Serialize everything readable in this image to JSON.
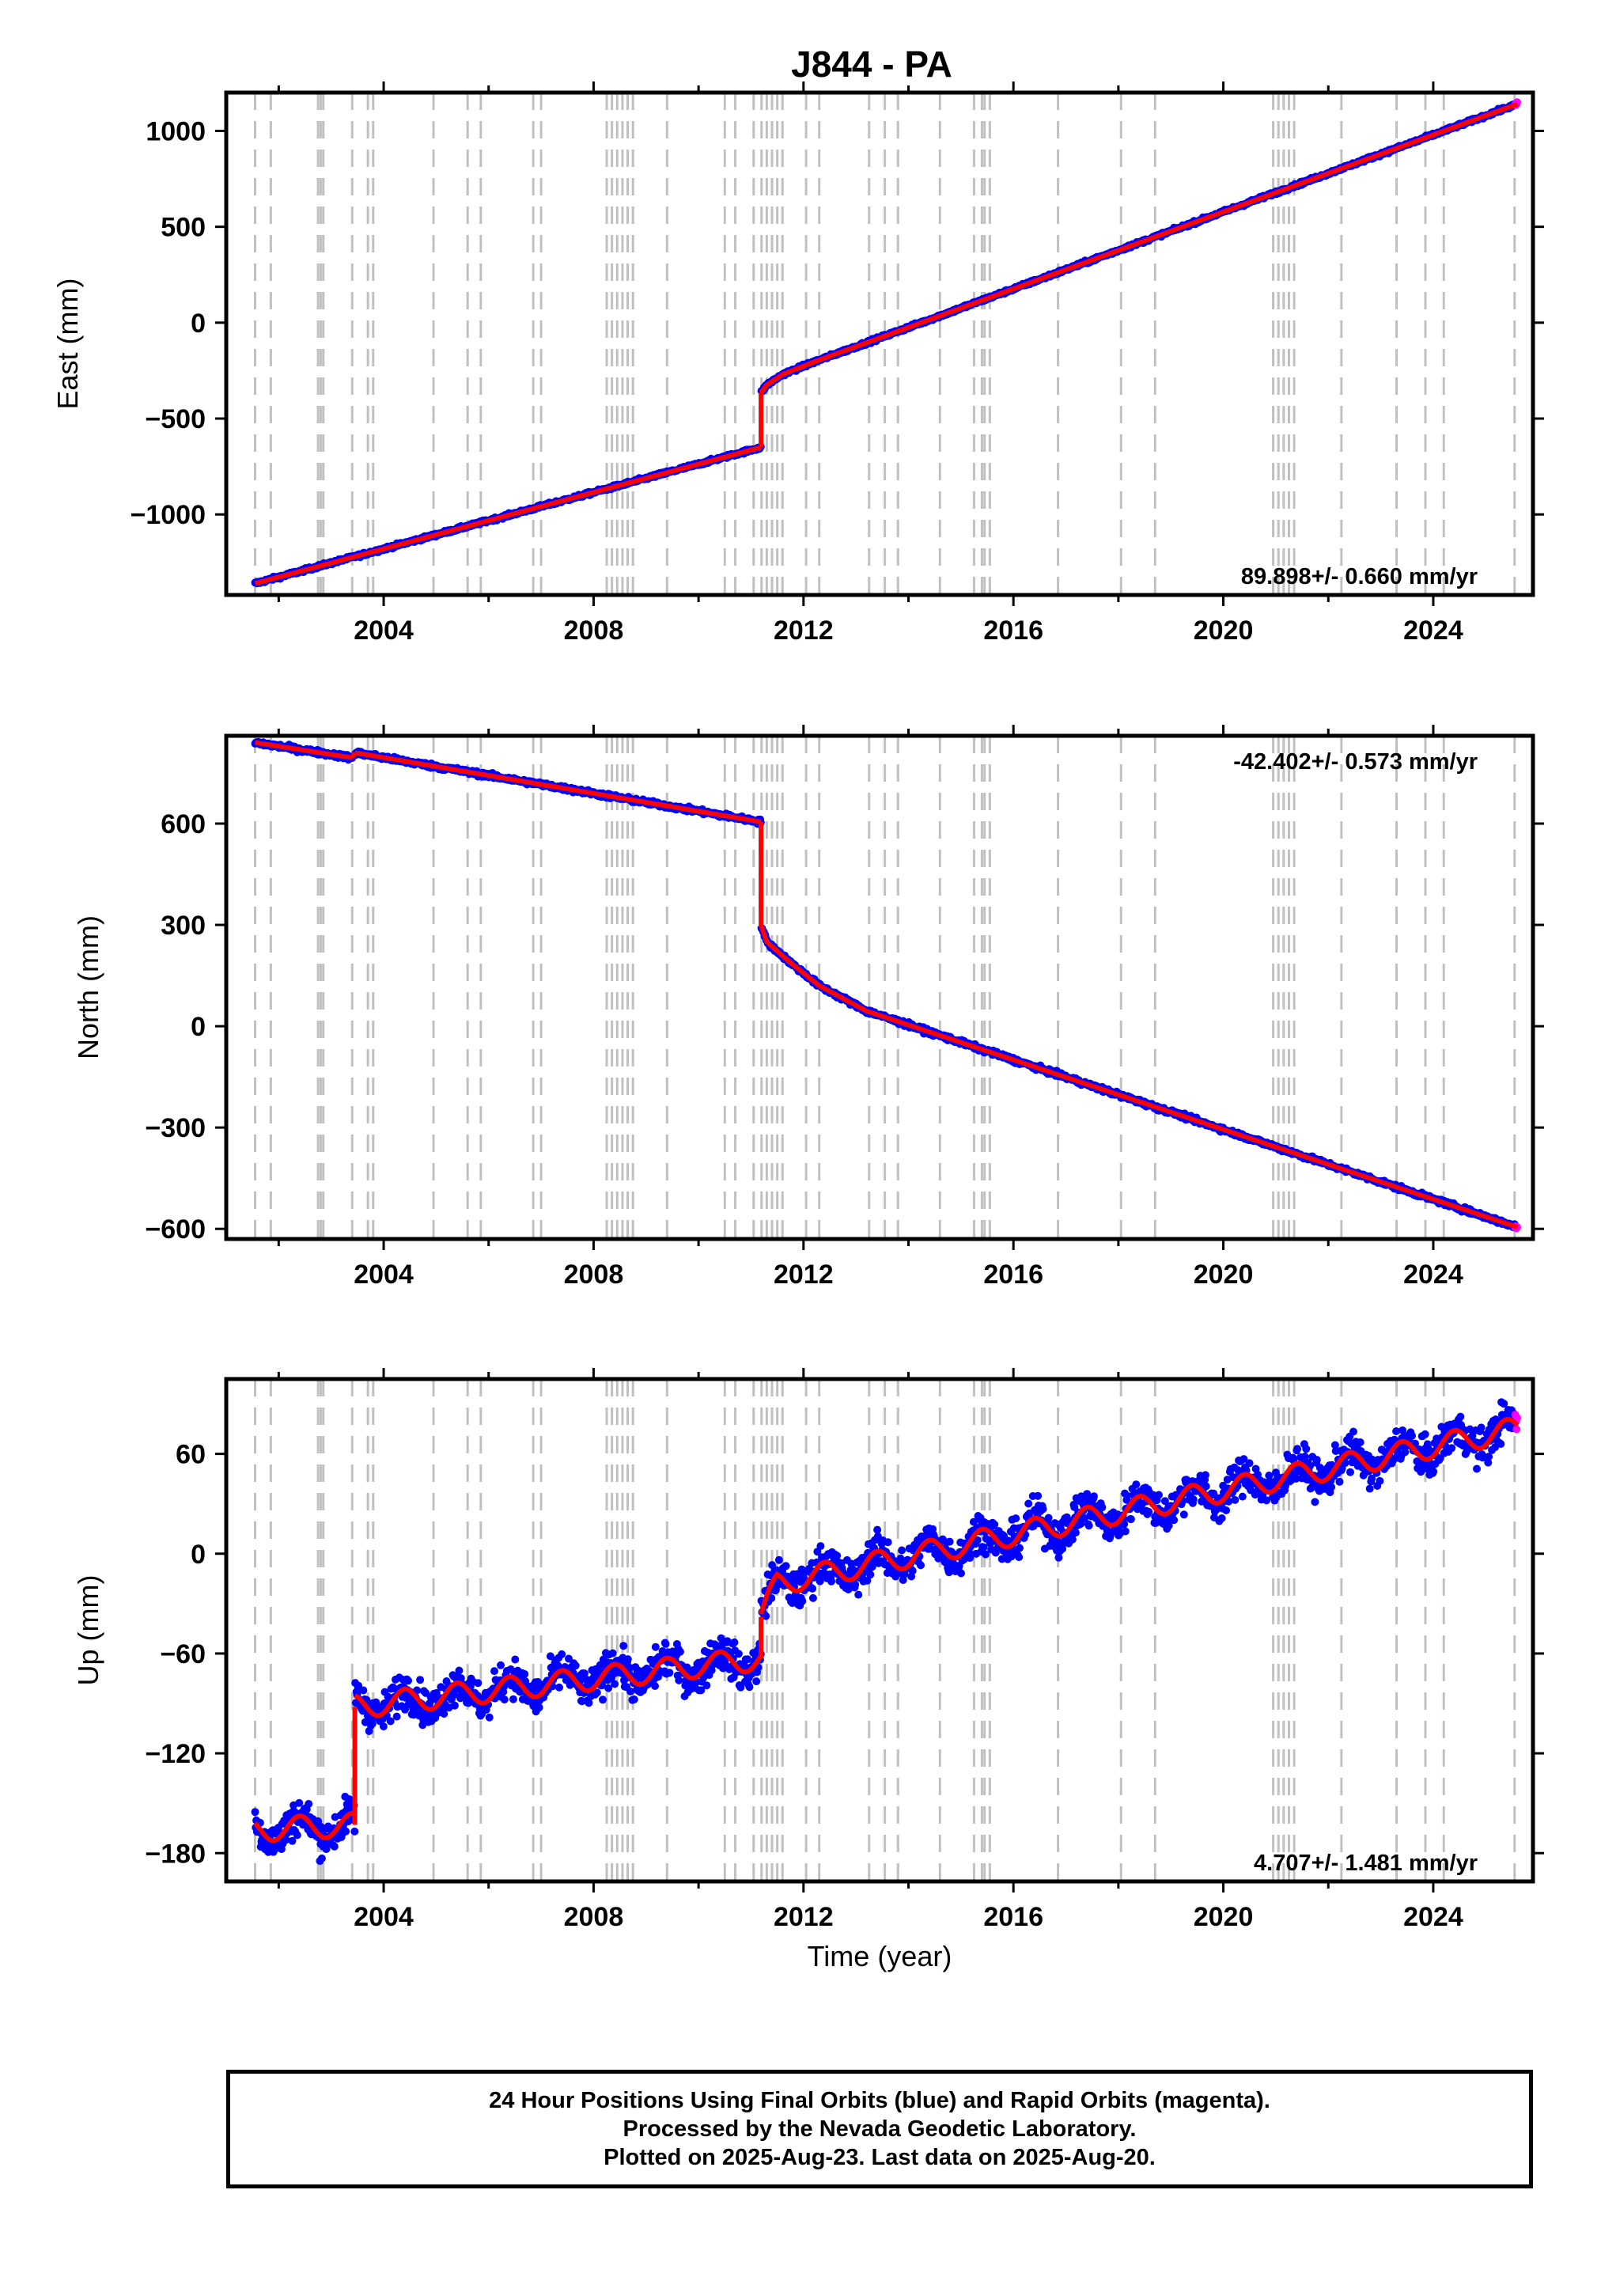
{
  "chart_data": {
    "title": "J844 - PA",
    "type": "scatter",
    "x_label": "Time (year)",
    "x_ticks": [
      2004,
      2008,
      2012,
      2016,
      2020,
      2024
    ],
    "xlim": [
      2001.0,
      2025.9
    ],
    "equipment_change_epochs": [
      2001.55,
      2001.85,
      2002.75,
      2002.8,
      2002.85,
      2003.4,
      2003.7,
      2003.8,
      2004.95,
      2005.6,
      2005.85,
      2006.85,
      2007.0,
      2008.25,
      2008.35,
      2008.45,
      2008.55,
      2008.65,
      2008.75,
      2009.4,
      2010.5,
      2010.7,
      2011.05,
      2011.2,
      2011.3,
      2011.4,
      2011.5,
      2011.6,
      2012.05,
      2012.3,
      2013.25,
      2013.55,
      2013.8,
      2014.6,
      2015.25,
      2015.4,
      2015.45,
      2015.55,
      2016.85,
      2018.05,
      2018.7,
      2020.95,
      2021.05,
      2021.15,
      2021.25,
      2021.35,
      2022.25,
      2023.3,
      2023.85,
      2024.2,
      2025.55
    ],
    "panels": [
      {
        "ylabel": "East (mm)",
        "ylim": [
          -1420,
          1200
        ],
        "y_ticks": [
          -1000,
          -500,
          0,
          500,
          1000
        ],
        "y_tick_labels": [
          "−1000",
          "−500",
          "0",
          "500",
          "1000"
        ],
        "rate": "89.898+/- 0.660 mm/yr",
        "rate_position": "bottom-right",
        "trend_segments": [
          {
            "x": [
              2001.55,
              2011.19
            ],
            "y": [
              -1360,
              -650
            ]
          },
          {
            "x": [
              2011.19,
              2011.3,
              2011.6,
              2012.2,
              2013.0,
              2025.6
            ],
            "y": [
              -365,
              -325,
              -270,
              -205,
              -125,
              1140
            ]
          }
        ],
        "noise_mm": 6,
        "seasonal_amp_mm": 0
      },
      {
        "ylabel": "North (mm)",
        "ylim": [
          -630,
          860
        ],
        "y_ticks": [
          -600,
          -300,
          0,
          300,
          600
        ],
        "y_tick_labels": [
          "−600",
          "−300",
          "0",
          "300",
          "600"
        ],
        "rate": "-42.402+/- 0.573 mm/yr",
        "rate_position": "top-right",
        "trend_segments": [
          {
            "x": [
              2001.55,
              2003.4
            ],
            "y": [
              840,
              795
            ]
          },
          {
            "x": [
              2003.45,
              2011.19
            ],
            "y": [
              810,
              605
            ]
          },
          {
            "x": [
              2011.19,
              2011.3,
              2011.7,
              2012.3,
              2013.2,
              2025.6
            ],
            "y": [
              300,
              250,
              195,
              120,
              45,
              -595
            ]
          }
        ],
        "noise_mm": 5,
        "seasonal_amp_mm": 0
      },
      {
        "ylabel": "Up (mm)",
        "ylim": [
          -197,
          105
        ],
        "y_ticks": [
          -180,
          -120,
          -60,
          0,
          60
        ],
        "y_tick_labels": [
          "−180",
          "−120",
          "−60",
          "0",
          "60"
        ],
        "rate": "4.707+/- 1.481 mm/yr",
        "rate_position": "bottom-right",
        "trend_segments": [
          {
            "x": [
              2001.55,
              2003.45
            ],
            "y": [
              -166,
              -163
            ]
          },
          {
            "x": [
              2003.45,
              2011.19
            ],
            "y": [
              -92,
              -63
            ]
          },
          {
            "x": [
              2011.19,
              2011.5,
              2025.6
            ],
            "y": [
              -38,
              -18,
              75
            ]
          }
        ],
        "noise_mm": 8,
        "seasonal_amp_mm": 7
      }
    ],
    "series": [
      {
        "name": "Final Orbits",
        "color": "#0000ff"
      },
      {
        "name": "Rapid Orbits",
        "color": "#ff00ff"
      },
      {
        "color": "#ff0000"
      }
    ],
    "rapid_start": 2025.56,
    "last_x": 2025.64
  },
  "footer": {
    "line1": "24 Hour Positions Using Final Orbits (blue) and Rapid Orbits (magenta).",
    "line2": "Processed by the Nevada Geodetic Laboratory.",
    "line3": "Plotted on 2025-Aug-23. Last data on 2025-Aug-20."
  }
}
